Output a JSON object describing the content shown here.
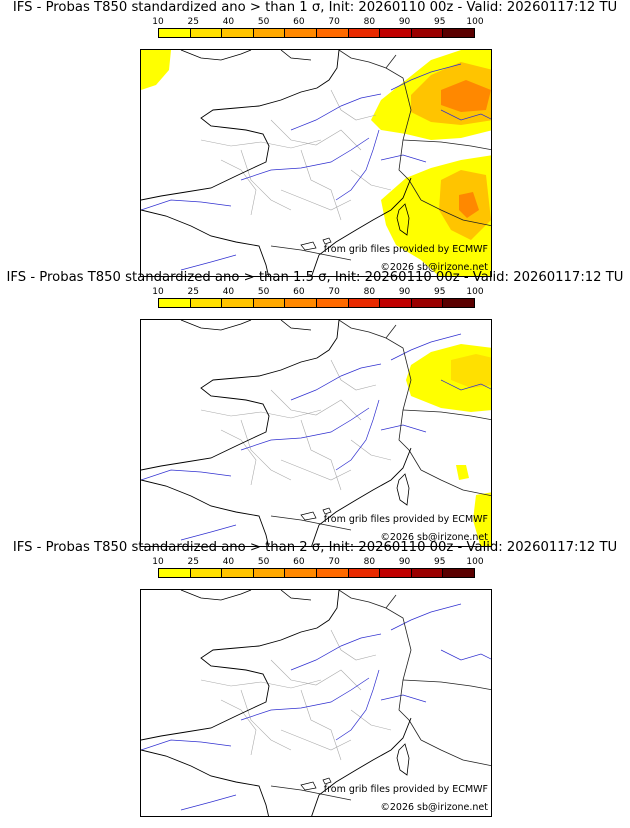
{
  "panels": [
    {
      "title": "IFS - Probas T850  standardized ano > than 1 σ, Init: 20260110 00z - Valid: 20260117:12 TU",
      "level": "1"
    },
    {
      "title": "IFS - Probas T850  standardized ano > than 1.5 σ, Init: 20260110 00z - Valid: 20260117:12 TU",
      "level": "1.5"
    },
    {
      "title": "IFS - Probas T850  standardized ano > than 2 σ, Init: 20260110 00z - Valid: 20260117:12 TU",
      "level": "2"
    }
  ],
  "colorbar": {
    "ticks": [
      "10",
      "25",
      "40",
      "50",
      "60",
      "70",
      "80",
      "90",
      "95",
      "100"
    ],
    "colors": [
      "#ffff00",
      "#ffe000",
      "#ffc400",
      "#ffa800",
      "#ff8800",
      "#ff6a00",
      "#e82a00",
      "#c00000",
      "#9a0000",
      "#5a0000"
    ]
  },
  "credits": {
    "source": "from grib files provided by ECMWF",
    "copyright": "©2026 sb@irizone.net"
  }
}
